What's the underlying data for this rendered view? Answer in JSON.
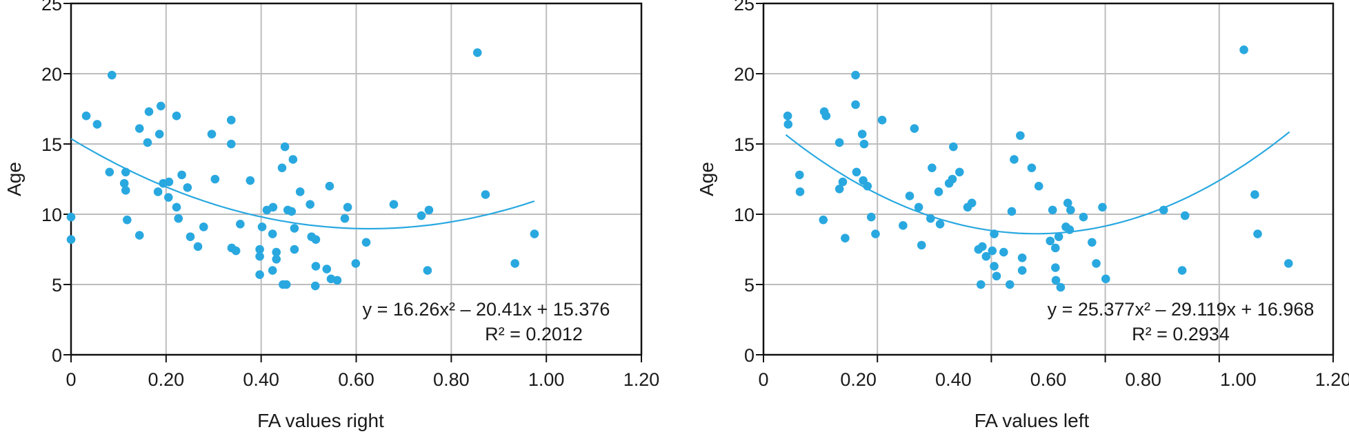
{
  "chart_data": [
    {
      "type": "scatter",
      "xlabel": "FA values right",
      "ylabel": "Age",
      "xlim": [
        0,
        1.2
      ],
      "ylim": [
        0,
        25
      ],
      "xticks": [
        "0",
        "0.20",
        "0.40",
        "0.60",
        "0.80",
        "1.00",
        "1.20"
      ],
      "yticks": [
        "0",
        "5",
        "10",
        "15",
        "20",
        "25"
      ],
      "grid": true,
      "marker_color": "#29a8e0",
      "trendline": {
        "type": "polynomial-2",
        "coefficients": [
          16.26,
          -20.41,
          15.376
        ],
        "x_range": [
          0,
          0.975
        ],
        "equation": "y = 16.26x² – 20.41x + 15.376",
        "r2": "R² = 0.2012"
      },
      "points": [
        [
          0,
          9.8
        ],
        [
          0,
          8.2
        ],
        [
          0.032,
          17.0
        ],
        [
          0.055,
          16.4
        ],
        [
          0.086,
          19.9
        ],
        [
          0.081,
          13.0
        ],
        [
          0.115,
          13.0
        ],
        [
          0.112,
          12.2
        ],
        [
          0.115,
          11.7
        ],
        [
          0.118,
          9.6
        ],
        [
          0.144,
          16.1
        ],
        [
          0.144,
          8.5
        ],
        [
          0.164,
          17.3
        ],
        [
          0.161,
          15.1
        ],
        [
          0.189,
          17.7
        ],
        [
          0.186,
          15.7
        ],
        [
          0.183,
          11.6
        ],
        [
          0.194,
          12.2
        ],
        [
          0.206,
          12.3
        ],
        [
          0.205,
          11.2
        ],
        [
          0.222,
          17.0
        ],
        [
          0.233,
          12.8
        ],
        [
          0.222,
          10.5
        ],
        [
          0.226,
          9.7
        ],
        [
          0.245,
          11.9
        ],
        [
          0.251,
          8.4
        ],
        [
          0.279,
          9.1
        ],
        [
          0.267,
          7.7
        ],
        [
          0.296,
          15.7
        ],
        [
          0.303,
          12.5
        ],
        [
          0.337,
          16.7
        ],
        [
          0.337,
          15.0
        ],
        [
          0.356,
          9.3
        ],
        [
          0.338,
          7.6
        ],
        [
          0.347,
          7.4
        ],
        [
          0.377,
          12.4
        ],
        [
          0.412,
          10.3
        ],
        [
          0.425,
          10.5
        ],
        [
          0.402,
          9.1
        ],
        [
          0.424,
          8.6
        ],
        [
          0.397,
          7.5
        ],
        [
          0.397,
          7.0
        ],
        [
          0.397,
          5.7
        ],
        [
          0.432,
          7.3
        ],
        [
          0.432,
          6.8
        ],
        [
          0.424,
          6.0
        ],
        [
          0.446,
          5.0
        ],
        [
          0.453,
          5.0
        ],
        [
          0.45,
          14.8
        ],
        [
          0.444,
          13.3
        ],
        [
          0.456,
          10.3
        ],
        [
          0.467,
          13.9
        ],
        [
          0.482,
          11.6
        ],
        [
          0.544,
          12.0
        ],
        [
          0.503,
          10.7
        ],
        [
          0.464,
          10.2
        ],
        [
          0.582,
          10.5
        ],
        [
          0.576,
          9.7
        ],
        [
          0.47,
          9.0
        ],
        [
          0.506,
          8.4
        ],
        [
          0.515,
          8.2
        ],
        [
          0.47,
          7.5
        ],
        [
          0.515,
          6.3
        ],
        [
          0.538,
          6.1
        ],
        [
          0.547,
          5.4
        ],
        [
          0.56,
          5.3
        ],
        [
          0.514,
          4.9
        ],
        [
          0.599,
          6.5
        ],
        [
          0.621,
          8.0
        ],
        [
          0.679,
          10.7
        ],
        [
          0.737,
          9.9
        ],
        [
          0.753,
          10.3
        ],
        [
          0.75,
          6.0
        ],
        [
          0.855,
          21.5
        ],
        [
          0.872,
          11.4
        ],
        [
          0.934,
          6.5
        ],
        [
          0.975,
          8.6
        ]
      ]
    },
    {
      "type": "scatter",
      "xlabel": "FA values left",
      "ylabel": "Age",
      "xlim": [
        0,
        1.2
      ],
      "ylim": [
        0,
        25
      ],
      "xticks": [
        "0",
        "0.20",
        "0.40",
        "0.60",
        "0.80",
        "1.00",
        "1.20"
      ],
      "yticks": [
        "0",
        "5",
        "10",
        "15",
        "20",
        "25"
      ],
      "grid": true,
      "marker_color": "#29a8e0",
      "trendline": {
        "type": "polynomial-2",
        "coefficients": [
          25.377,
          -29.119,
          16.968
        ],
        "x_range": [
          0.047,
          1.108
        ],
        "equation": "y = 25.377x² – 29.119x + 16.968",
        "r2": "R² = 0.2934"
      },
      "points": [
        [
          0.051,
          17.0
        ],
        [
          0.052,
          16.4
        ],
        [
          0.076,
          12.8
        ],
        [
          0.077,
          11.6
        ],
        [
          0.128,
          17.3
        ],
        [
          0.132,
          17.0
        ],
        [
          0.16,
          15.1
        ],
        [
          0.126,
          9.6
        ],
        [
          0.16,
          11.8
        ],
        [
          0.172,
          8.3
        ],
        [
          0.167,
          12.3
        ],
        [
          0.194,
          19.9
        ],
        [
          0.194,
          17.8
        ],
        [
          0.208,
          15.7
        ],
        [
          0.212,
          15.0
        ],
        [
          0.196,
          13.0
        ],
        [
          0.21,
          12.4
        ],
        [
          0.219,
          12.0
        ],
        [
          0.227,
          9.8
        ],
        [
          0.236,
          8.6
        ],
        [
          0.25,
          16.7
        ],
        [
          0.318,
          16.1
        ],
        [
          0.294,
          9.2
        ],
        [
          0.333,
          7.8
        ],
        [
          0.308,
          11.3
        ],
        [
          0.327,
          10.5
        ],
        [
          0.352,
          9.7
        ],
        [
          0.372,
          9.3
        ],
        [
          0.355,
          13.3
        ],
        [
          0.369,
          11.6
        ],
        [
          0.391,
          12.2
        ],
        [
          0.398,
          12.5
        ],
        [
          0.413,
          13.0
        ],
        [
          0.4,
          14.8
        ],
        [
          0.43,
          10.5
        ],
        [
          0.439,
          10.8
        ],
        [
          0.453,
          7.5
        ],
        [
          0.461,
          7.7
        ],
        [
          0.469,
          7.0
        ],
        [
          0.458,
          5.0
        ],
        [
          0.486,
          8.6
        ],
        [
          0.482,
          7.4
        ],
        [
          0.486,
          6.3
        ],
        [
          0.491,
          5.6
        ],
        [
          0.506,
          7.3
        ],
        [
          0.519,
          5.0
        ],
        [
          0.523,
          10.2
        ],
        [
          0.541,
          15.6
        ],
        [
          0.528,
          13.9
        ],
        [
          0.565,
          13.3
        ],
        [
          0.58,
          12.0
        ],
        [
          0.545,
          6.9
        ],
        [
          0.545,
          6.0
        ],
        [
          0.609,
          10.3
        ],
        [
          0.641,
          10.8
        ],
        [
          0.647,
          10.3
        ],
        [
          0.637,
          9.1
        ],
        [
          0.645,
          8.9
        ],
        [
          0.622,
          8.4
        ],
        [
          0.604,
          8.1
        ],
        [
          0.615,
          7.6
        ],
        [
          0.615,
          6.2
        ],
        [
          0.616,
          5.3
        ],
        [
          0.626,
          4.8
        ],
        [
          0.674,
          9.8
        ],
        [
          0.714,
          10.5
        ],
        [
          0.692,
          8.0
        ],
        [
          0.701,
          6.5
        ],
        [
          0.721,
          5.4
        ],
        [
          0.843,
          10.3
        ],
        [
          0.888,
          9.9
        ],
        [
          0.882,
          6.0
        ],
        [
          1.012,
          21.7
        ],
        [
          1.035,
          11.4
        ],
        [
          1.041,
          8.6
        ],
        [
          1.106,
          6.5
        ]
      ]
    }
  ]
}
